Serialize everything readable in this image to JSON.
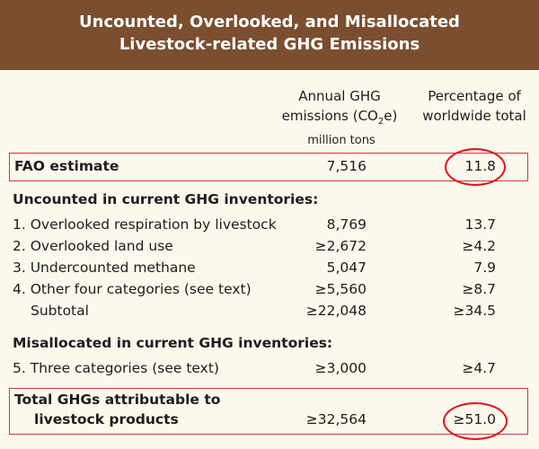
{
  "title_line1": "Uncounted, Overlooked, and Misallocated",
  "title_line2": "Livestock-related GHG Emissions",
  "col1_header_line1": "Annual GHG",
  "col1_header_line2_pre": "emissions (CO",
  "col1_header_sub": "2",
  "col1_header_line2_post": "e)",
  "col2_header_line1": "Percentage of",
  "col2_header_line2": "worldwide total",
  "units": "million tons",
  "fao": {
    "label": "FAO estimate",
    "emissions": "7,516",
    "pct": "11.8"
  },
  "uncounted_heading": "Uncounted in current GHG inventories:",
  "uncounted_rows": [
    {
      "label": "1. Overlooked respiration by livestock",
      "emissions": "8,769",
      "pct": "13.7"
    },
    {
      "label": "2. Overlooked land use",
      "emissions": "≥2,672",
      "pct": "≥4.2"
    },
    {
      "label": "3. Undercounted methane",
      "emissions": "5,047",
      "pct": "7.9"
    },
    {
      "label": "4. Other four categories (see text)",
      "emissions": "≥5,560",
      "pct": "≥8.7"
    }
  ],
  "subtotal": {
    "label": "Subtotal",
    "emissions": "≥22,048",
    "pct": "≥34.5"
  },
  "misallocated_heading": "Misallocated in current GHG inventories:",
  "misallocated_rows": [
    {
      "label": "5. Three categories (see text)",
      "emissions": "≥3,000",
      "pct": "≥4.7"
    }
  ],
  "total": {
    "label_line1": "Total GHGs attributable to",
    "label_line2": "livestock products",
    "emissions": "≥32,564",
    "pct": "≥51.0"
  }
}
